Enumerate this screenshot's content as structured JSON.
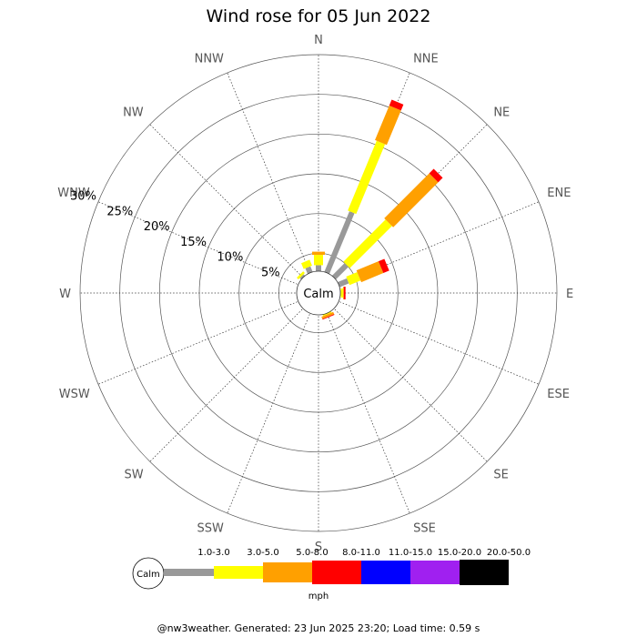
{
  "chart_data": {
    "type": "wind-rose",
    "title": "Wind rose for 05 Jun 2022",
    "directions": [
      "N",
      "NNE",
      "NE",
      "ENE",
      "E",
      "ESE",
      "SE",
      "SSE",
      "S",
      "SSW",
      "SW",
      "WSW",
      "W",
      "WNW",
      "NW",
      "NNW"
    ],
    "calm_label": "Calm",
    "radial_ticks": [
      5,
      10,
      15,
      20,
      25,
      30
    ],
    "radial_tick_labels": [
      "5%",
      "10%",
      "15%",
      "20%",
      "25%",
      "30%"
    ],
    "radial_max": 30,
    "calm_radius_pct": 2.5,
    "unit": "mph",
    "bins": [
      {
        "label": "1.0-3.0",
        "color": "#999999"
      },
      {
        "label": "3.0-5.0",
        "color": "#ffff00"
      },
      {
        "label": "5.0-8.0",
        "color": "#ffa000"
      },
      {
        "label": "8.0-11.0",
        "color": "#ff0000"
      },
      {
        "label": "11.0-15.0",
        "color": "#0000ff"
      },
      {
        "label": "15.0-20.0",
        "color": "#a020f0"
      },
      {
        "label": "20.0-50.0",
        "color": "#000000"
      }
    ],
    "series": [
      {
        "direction": "N",
        "cumulative": [
          3.5,
          4.8,
          5.2,
          5.2,
          5.2,
          5.2,
          5.2
        ]
      },
      {
        "direction": "NNE",
        "cumulative": [
          11.0,
          20.5,
          25.2,
          26.0,
          26.0,
          26.0,
          26.0
        ]
      },
      {
        "direction": "NE",
        "cumulative": [
          5.0,
          12.5,
          20.5,
          21.3,
          21.3,
          21.3,
          21.3
        ]
      },
      {
        "direction": "ENE",
        "cumulative": [
          4.0,
          5.5,
          8.5,
          9.3,
          9.3,
          9.3,
          9.3
        ]
      },
      {
        "direction": "E",
        "cumulative": [
          2.8,
          3.1,
          3.2,
          3.4,
          3.4,
          3.4,
          3.4
        ]
      },
      {
        "direction": "ESE",
        "cumulative": [
          2.5,
          2.5,
          2.5,
          2.5,
          2.5,
          2.5,
          2.5
        ]
      },
      {
        "direction": "SE",
        "cumulative": [
          2.5,
          2.5,
          2.5,
          2.5,
          2.5,
          2.5,
          2.5
        ]
      },
      {
        "direction": "SSE",
        "cumulative": [
          2.5,
          2.9,
          3.2,
          3.3,
          3.3,
          3.3,
          3.3
        ]
      },
      {
        "direction": "S",
        "cumulative": [
          2.5,
          2.5,
          2.5,
          2.5,
          2.5,
          2.5,
          2.5
        ]
      },
      {
        "direction": "SSW",
        "cumulative": [
          2.5,
          2.5,
          2.5,
          2.5,
          2.5,
          2.5,
          2.5
        ]
      },
      {
        "direction": "SW",
        "cumulative": [
          2.5,
          2.5,
          2.5,
          2.5,
          2.5,
          2.5,
          2.5
        ]
      },
      {
        "direction": "WSW",
        "cumulative": [
          2.5,
          2.5,
          2.5,
          2.5,
          2.5,
          2.5,
          2.5
        ]
      },
      {
        "direction": "W",
        "cumulative": [
          2.5,
          2.5,
          2.5,
          2.5,
          2.5,
          2.5,
          2.5
        ]
      },
      {
        "direction": "WNW",
        "cumulative": [
          2.5,
          2.5,
          2.5,
          2.5,
          2.5,
          2.5,
          2.5
        ]
      },
      {
        "direction": "NW",
        "cumulative": [
          3.0,
          3.3,
          3.3,
          3.3,
          3.3,
          3.3,
          3.3
        ]
      },
      {
        "direction": "NNW",
        "cumulative": [
          3.5,
          4.3,
          4.3,
          4.3,
          4.3,
          4.3,
          4.3
        ]
      }
    ]
  },
  "footer": "@nw3weather. Generated: 23 Jun 2025 23:20; Load time: 0.59 s"
}
